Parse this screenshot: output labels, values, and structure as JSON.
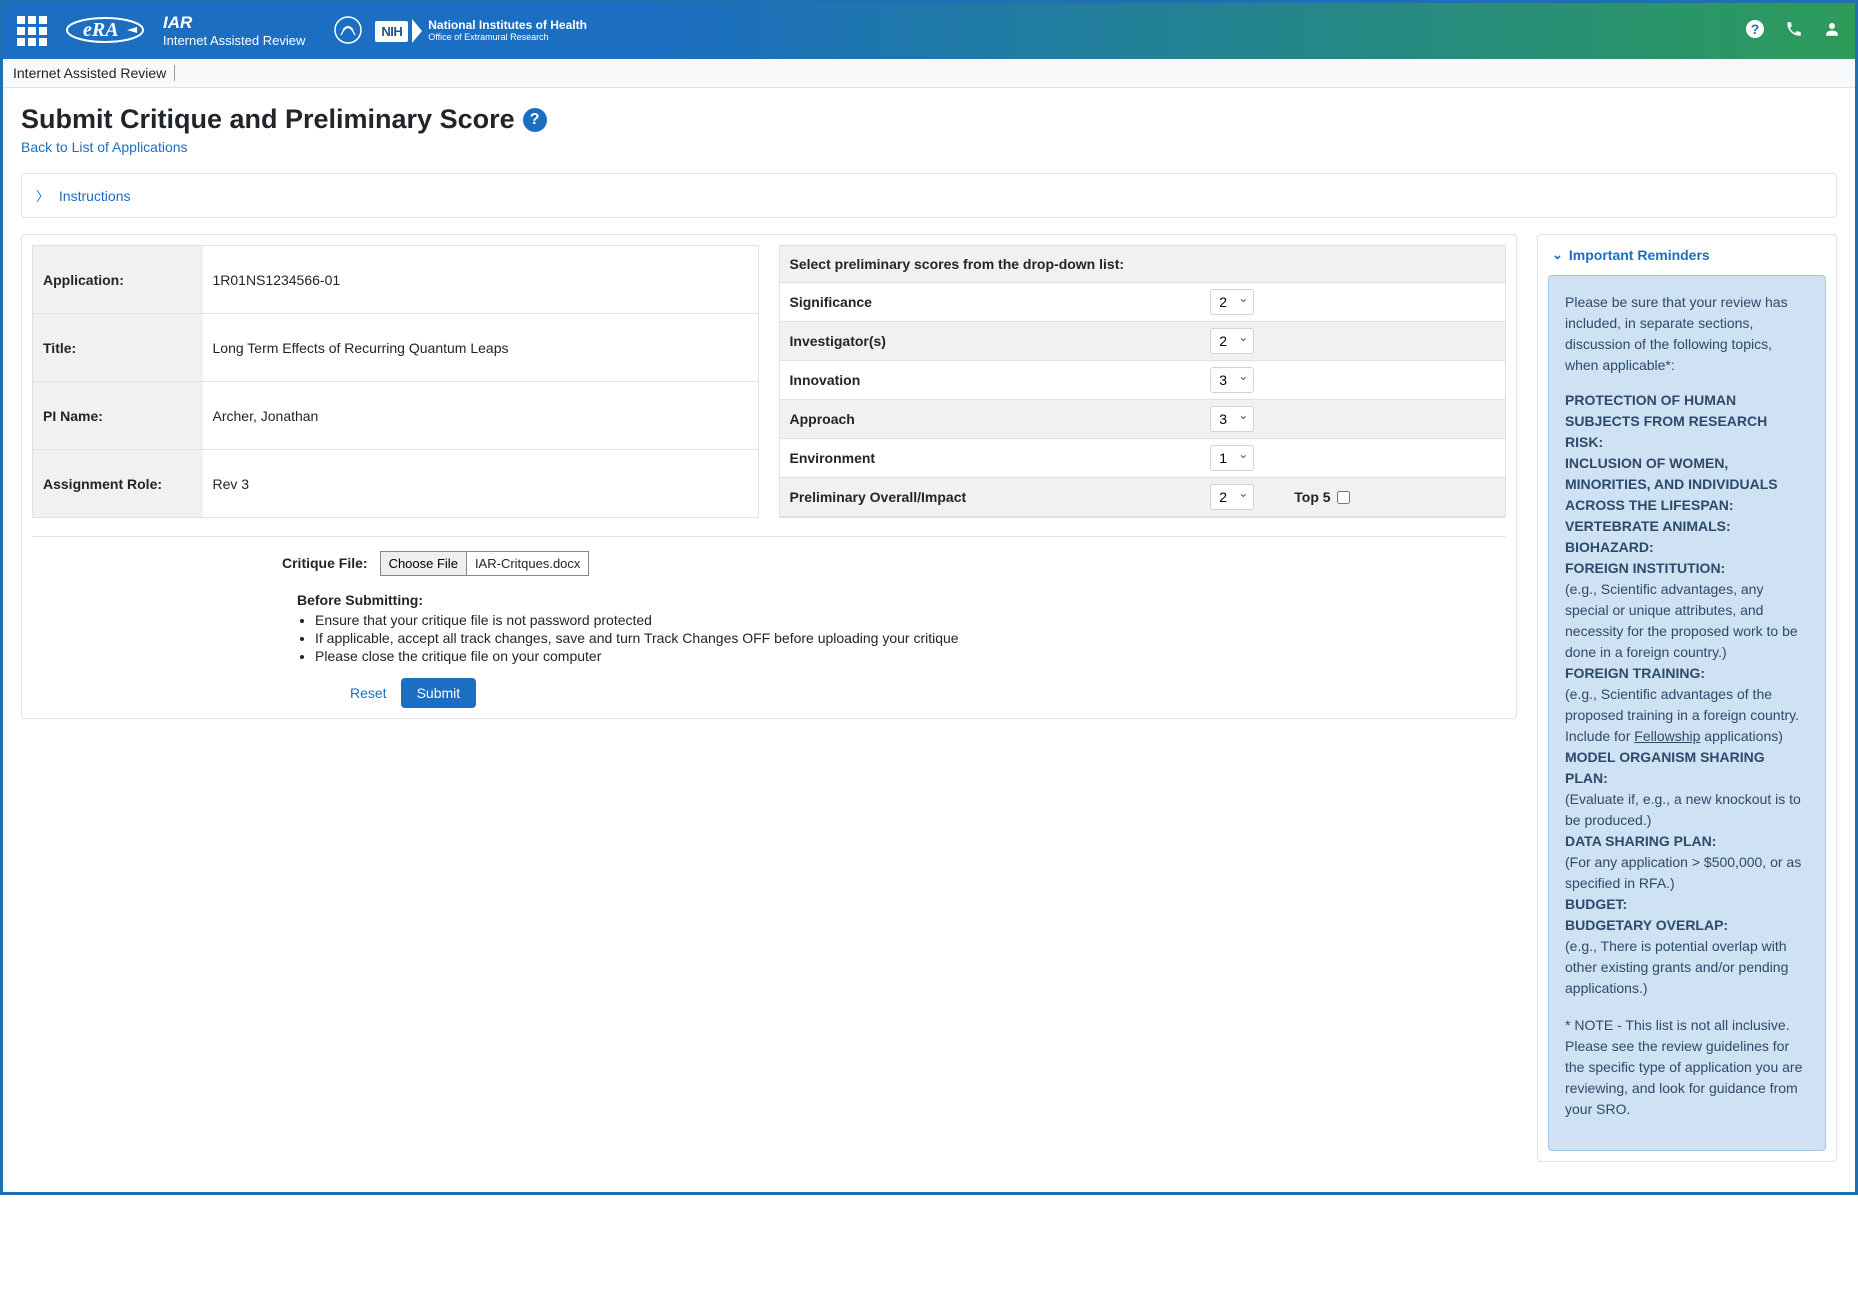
{
  "header": {
    "app_abbr": "IAR",
    "app_full": "Internet Assisted Review",
    "nih_line1": "National Institutes of Health",
    "nih_line2": "Office of Extramural Research",
    "nih_badge": "NIH"
  },
  "breadcrumb": "Internet Assisted Review",
  "page_title": "Submit Critique and Preliminary Score",
  "back_link": "Back to List of Applications",
  "instructions_label": "Instructions",
  "info": {
    "application_label": "Application:",
    "application_value": "1R01NS1234566-01",
    "title_label": "Title:",
    "title_value": "Long Term Effects of Recurring Quantum Leaps",
    "pi_label": "PI Name:",
    "pi_value": "Archer, Jonathan",
    "role_label": "Assignment Role:",
    "role_value": "Rev 3"
  },
  "scores": {
    "header": "Select preliminary scores from the drop-down list:",
    "rows": [
      {
        "label": "Significance",
        "value": "2"
      },
      {
        "label": "Investigator(s)",
        "value": "2"
      },
      {
        "label": "Innovation",
        "value": "3"
      },
      {
        "label": "Approach",
        "value": "3"
      },
      {
        "label": "Environment",
        "value": "1"
      },
      {
        "label": "Preliminary Overall/Impact",
        "value": "2"
      }
    ],
    "top5_label": "Top 5"
  },
  "critique": {
    "label": "Critique File:",
    "choose_button": "Choose File",
    "filename": "IAR-Critques.docx"
  },
  "before_submitting": {
    "header": "Before Submitting:",
    "items": [
      "Ensure that your critique file is not password protected",
      "If applicable, accept all track changes, save and turn Track Changes OFF before uploading your critique",
      "Please close the critique file on your computer"
    ]
  },
  "actions": {
    "reset": "Reset",
    "submit": "Submit"
  },
  "reminders": {
    "header": "Important Reminders",
    "intro": "Please be sure that your review has included, in separate sections, discussion of the following topics, when applicable*:",
    "topics": [
      {
        "title": "PROTECTION OF HUMAN SUBJECTS FROM RESEARCH RISK:",
        "desc": ""
      },
      {
        "title": "INCLUSION OF WOMEN, MINORITIES, AND INDIVIDUALS ACROSS THE LIFESPAN:",
        "desc": ""
      },
      {
        "title": "VERTEBRATE ANIMALS:",
        "desc": ""
      },
      {
        "title": "BIOHAZARD:",
        "desc": ""
      },
      {
        "title": "FOREIGN INSTITUTION:",
        "desc": "(e.g., Scientific advantages, any special or unique attributes, and necessity for the proposed work to be done in a foreign country.)"
      },
      {
        "title": "FOREIGN TRAINING:",
        "desc_pre": "(e.g., Scientific advantages of the proposed training in a foreign country. Include for ",
        "desc_underline": "Fellowship",
        "desc_post": " applications)"
      },
      {
        "title": "MODEL ORGANISM SHARING PLAN:",
        "desc": "(Evaluate if, e.g., a new knockout is to be produced.)"
      },
      {
        "title": "DATA SHARING PLAN:",
        "desc": "(For any application > $500,000, or as specified in RFA.)"
      },
      {
        "title": "BUDGET:",
        "desc": ""
      },
      {
        "title": "BUDGETARY OVERLAP:",
        "desc": "(e.g., There is potential overlap with other existing grants and/or pending applications.)"
      }
    ],
    "note": "* NOTE - This list is not all inclusive. Please see the review guidelines for the specific type of application you are reviewing, and look for guidance from your SRO."
  },
  "colors": {
    "primary": "#1b6ec2",
    "header_gradient_start": "#1b6ec2",
    "header_gradient_end": "#2d9b5a",
    "reminder_bg": "#cfe2f3",
    "reminder_text": "#2c4a6b",
    "border": "#dee2e6"
  }
}
